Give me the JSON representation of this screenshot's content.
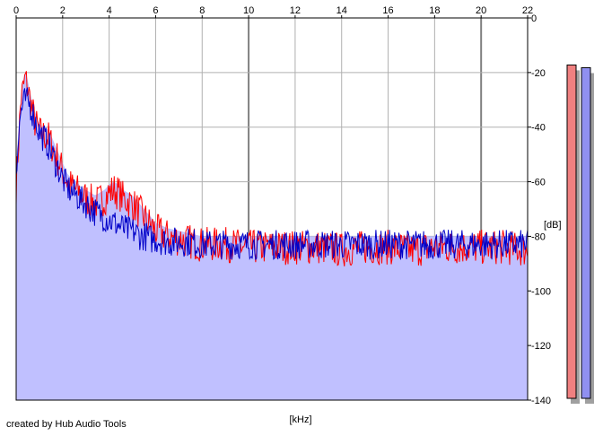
{
  "credit": "created by Hub Audio Tools",
  "colors": {
    "background": "#ffffff",
    "fill": "#c0c0ff",
    "grid": "#b0b0b0",
    "grid_major": "#808080",
    "series_left": "#ff0000",
    "series_right": "#0000c8",
    "meter_left": "#f08080",
    "meter_right": "#9090f0",
    "meter_shadow": "#a0a0a0"
  },
  "chart_data": {
    "type": "line",
    "title": "",
    "xlabel": "[kHz]",
    "ylabel": "[dB]",
    "xlim": [
      0,
      22
    ],
    "ylim": [
      -140,
      0
    ],
    "x_axis_position": "top",
    "y_axis_position": "right",
    "grid": true,
    "x_ticks": [
      0,
      2,
      4,
      6,
      8,
      10,
      12,
      14,
      16,
      18,
      20,
      22
    ],
    "y_ticks": [
      0,
      -20,
      -40,
      -60,
      -80,
      -100,
      -120,
      -140
    ],
    "x_tick_labels": [
      "0",
      "2",
      "4",
      "6",
      "8",
      "10",
      "12",
      "14",
      "16",
      "18",
      "20",
      "22"
    ],
    "y_tick_labels": [
      "0",
      "-20",
      "-40",
      "-60",
      "-80",
      "-100",
      "-120",
      "-140"
    ],
    "series": [
      {
        "x": [
          0,
          0.2,
          0.4,
          0.6,
          0.8,
          1,
          1.2,
          1.4,
          1.6,
          1.8,
          2,
          2.2,
          2.4,
          2.6,
          2.8,
          3,
          3.2,
          3.4,
          3.6,
          3.8,
          4,
          4.2,
          4.4,
          4.6,
          4.8,
          5,
          5.2,
          5.4,
          5.6,
          5.8,
          6,
          6.5,
          7,
          7.5,
          8,
          9,
          10,
          11,
          12,
          13,
          14,
          15,
          16,
          17,
          18,
          19,
          20,
          21,
          22
        ],
        "values": [
          -62,
          -30,
          -22,
          -30,
          -38,
          -42,
          -43,
          -44,
          -48,
          -52,
          -56,
          -60,
          -62,
          -63,
          -65,
          -66,
          -67,
          -68,
          -67,
          -66,
          -64,
          -63,
          -64,
          -66,
          -67,
          -68,
          -70,
          -72,
          -74,
          -76,
          -78,
          -80,
          -81,
          -82,
          -83,
          -83,
          -84,
          -84,
          -84,
          -84,
          -85,
          -84,
          -84,
          -85,
          -84,
          -84,
          -84,
          -84,
          -85
        ]
      },
      {
        "x": [
          0,
          0.2,
          0.4,
          0.6,
          0.8,
          1,
          1.2,
          1.4,
          1.6,
          1.8,
          2,
          2.2,
          2.4,
          2.6,
          2.8,
          3,
          3.2,
          3.4,
          3.6,
          3.8,
          4,
          4.2,
          4.4,
          4.6,
          4.8,
          5,
          5.2,
          5.4,
          5.6,
          5.8,
          6,
          6.5,
          7,
          7.5,
          8,
          9,
          10,
          11,
          12,
          13,
          14,
          15,
          16,
          17,
          18,
          19,
          20,
          21,
          22
        ],
        "values": [
          -55,
          -34,
          -30,
          -32,
          -37,
          -42,
          -44,
          -47,
          -51,
          -55,
          -59,
          -62,
          -64,
          -65,
          -67,
          -68,
          -70,
          -71,
          -72,
          -73,
          -74,
          -75,
          -76,
          -77,
          -78,
          -78,
          -79,
          -80,
          -80,
          -81,
          -81,
          -82,
          -82,
          -82,
          -83,
          -83,
          -83,
          -83,
          -83,
          -83,
          -83,
          -83,
          -83,
          -83,
          -83,
          -83,
          -83,
          -83,
          -83
        ]
      }
    ],
    "level_meters": [
      {
        "channel": "left",
        "level_db": -10
      },
      {
        "channel": "right",
        "level_db": -11
      }
    ]
  }
}
